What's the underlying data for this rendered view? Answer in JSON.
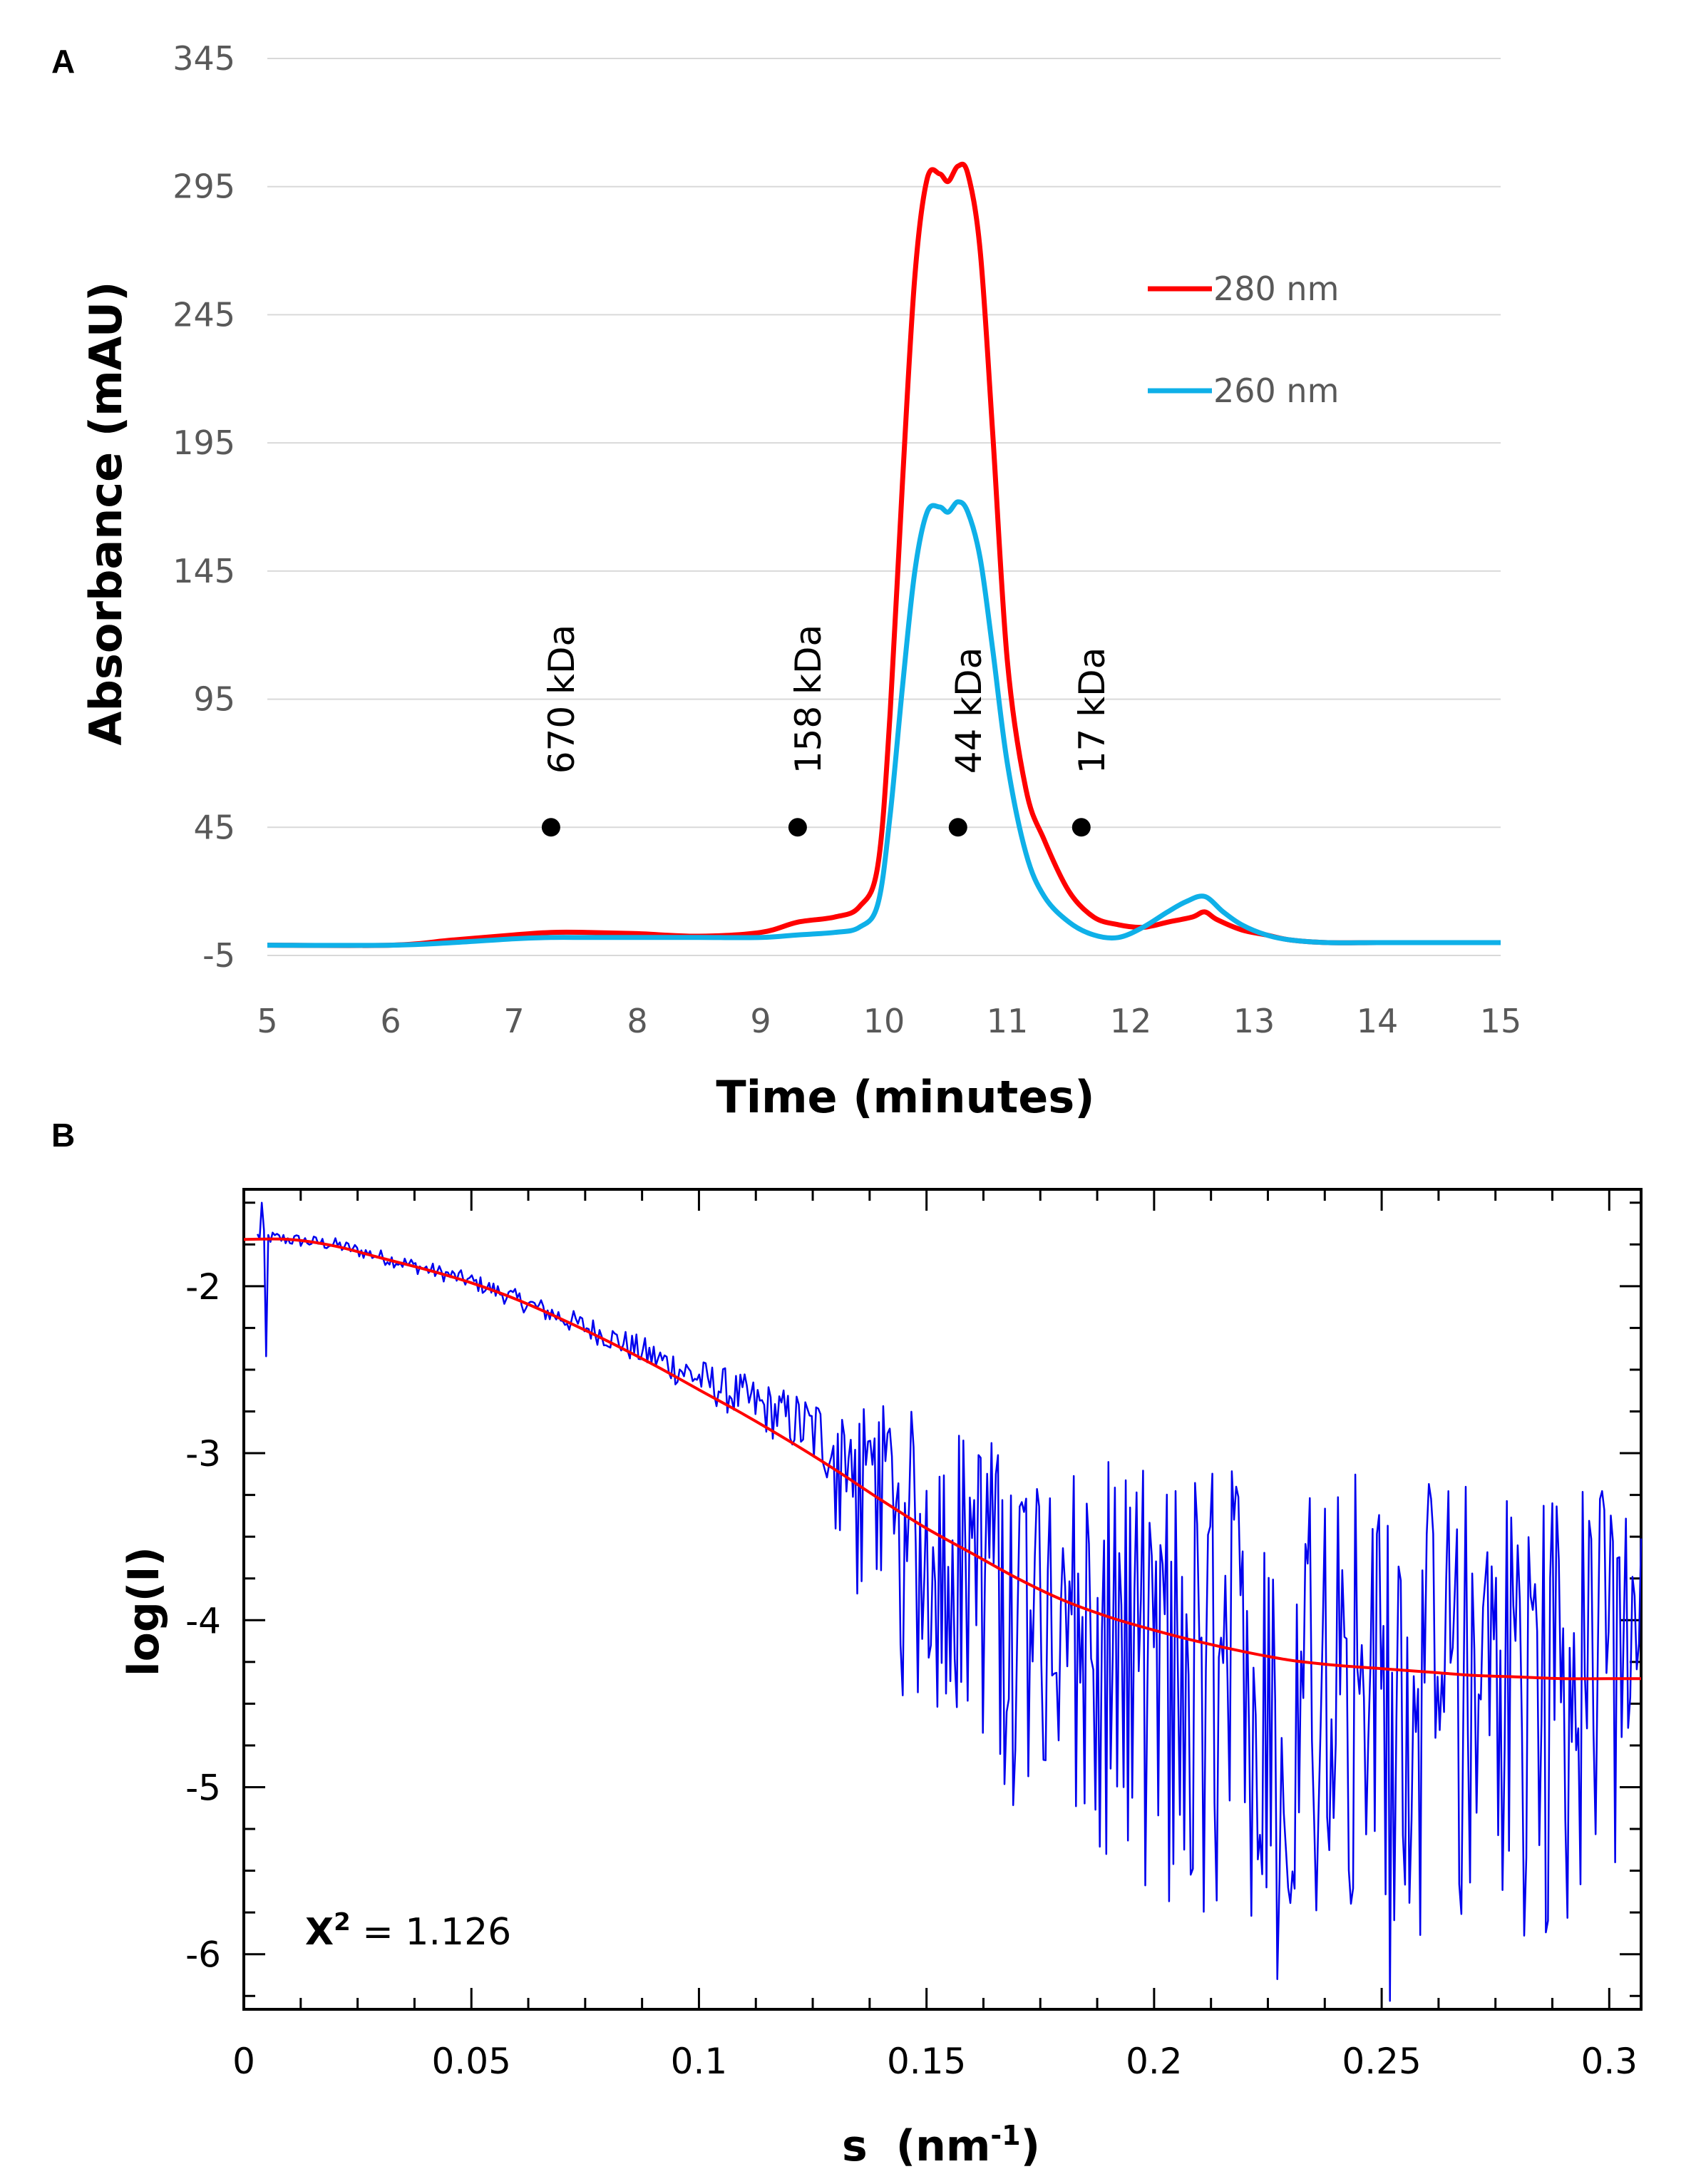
{
  "chart_data": [
    {
      "panel": "A",
      "type": "line",
      "xlabel": "Time (minutes)",
      "ylabel": "Absorbance (mAU)",
      "xlim": [
        5,
        15
      ],
      "ylim": [
        -5,
        345
      ],
      "x_ticks": [
        5,
        6,
        7,
        8,
        9,
        10,
        11,
        12,
        13,
        14,
        15
      ],
      "y_ticks": [
        -5,
        45,
        95,
        145,
        195,
        245,
        295,
        345
      ],
      "grid": "horizontal",
      "legend_position": "top-right",
      "series": [
        {
          "name": "280 nm",
          "color": "#ff0000",
          "x": [
            5,
            6,
            6.5,
            7,
            7.3,
            7.6,
            8,
            8.5,
            9,
            9.3,
            9.6,
            9.8,
            9.95,
            10.05,
            10.15,
            10.25,
            10.35,
            10.45,
            10.52,
            10.6,
            10.68,
            10.78,
            10.88,
            11.0,
            11.15,
            11.3,
            11.5,
            11.7,
            11.9,
            12.1,
            12.3,
            12.5,
            12.6,
            12.7,
            12.9,
            13.1,
            13.3,
            13.6,
            14,
            14.5,
            15
          ],
          "y": [
            -1,
            -1,
            1,
            3,
            4,
            4,
            3.5,
            2.5,
            4,
            8,
            10,
            14,
            30,
            90,
            180,
            260,
            298,
            300,
            297,
            303,
            300,
            270,
            200,
            110,
            60,
            40,
            20,
            10,
            7,
            6,
            8,
            10,
            12,
            9,
            5,
            3,
            1,
            0,
            0,
            0,
            0
          ]
        },
        {
          "name": "260 nm",
          "color": "#0fb0e8",
          "x": [
            5,
            6,
            6.5,
            7,
            7.3,
            7.6,
            8,
            8.5,
            9,
            9.3,
            9.6,
            9.8,
            9.95,
            10.05,
            10.15,
            10.25,
            10.35,
            10.45,
            10.52,
            10.6,
            10.68,
            10.78,
            10.88,
            11.0,
            11.15,
            11.3,
            11.5,
            11.7,
            11.9,
            12.1,
            12.3,
            12.45,
            12.6,
            12.75,
            12.9,
            13.1,
            13.3,
            13.6,
            14,
            14.5,
            15
          ],
          "y": [
            -1,
            -1,
            0,
            1.5,
            2,
            2,
            2,
            2,
            2,
            3,
            4,
            6,
            15,
            50,
            100,
            145,
            168,
            170,
            168,
            172,
            168,
            150,
            115,
            70,
            35,
            18,
            8,
            3,
            2,
            6,
            12,
            16,
            18,
            12,
            7,
            3,
            1,
            0,
            0,
            0,
            0
          ]
        }
      ],
      "markers": [
        {
          "x": 7.3,
          "y": 45,
          "label": "670 kDa"
        },
        {
          "x": 9.3,
          "y": 45,
          "label": "158 kDa"
        },
        {
          "x": 10.6,
          "y": 45,
          "label": "44 kDa"
        },
        {
          "x": 11.6,
          "y": 45,
          "label": "17 kDa"
        }
      ]
    },
    {
      "panel": "B",
      "type": "line",
      "xlabel": "s",
      "xlabel_unit": "(nm",
      "xlabel_unit_sup": "-1",
      "xlabel_unit_close": ")",
      "ylabel": "log(I)",
      "xlim": [
        0,
        0.307
      ],
      "ylim": [
        -6.33,
        -1.42
      ],
      "x_ticks": [
        "0",
        "0.05",
        "0.1",
        "0.15",
        "0.2",
        "0.25",
        "0.3"
      ],
      "y_ticks": [
        "-2",
        "-3",
        "-4",
        "-5",
        "-6"
      ],
      "grid": false,
      "annotation": {
        "label": "X",
        "sup": "2",
        "text": " = 1.126"
      },
      "series": [
        {
          "role": "data",
          "color": "#0000ee",
          "envelope": {
            "s": [
              0.003,
              0.02,
              0.05,
              0.08,
              0.1,
              0.12,
              0.14,
              0.15,
              0.17,
              0.2,
              0.22,
              0.25,
              0.3,
              0.307
            ],
            "center": [
              -1.7,
              -1.75,
              -1.97,
              -2.3,
              -2.55,
              -2.8,
              -3.1,
              -3.3,
              -3.6,
              -3.85,
              -3.9,
              -3.95,
              -3.98,
              -3.98
            ],
            "spread": [
              0.04,
              0.04,
              0.05,
              0.08,
              0.12,
              0.18,
              0.4,
              0.55,
              0.65,
              0.75,
              0.85,
              0.85,
              0.8,
              0.8
            ]
          },
          "outliers": [
            {
              "s": 0.005,
              "y": -2.42
            },
            {
              "s": 0.004,
              "y": -1.5
            },
            {
              "s": 0.145,
              "y": -4.45
            },
            {
              "s": 0.227,
              "y": -6.15
            },
            {
              "s": 0.252,
              "y": -6.28
            },
            {
              "s": 0.267,
              "y": -5.58
            }
          ]
        },
        {
          "role": "fit",
          "color": "#ff0000",
          "s": [
            0,
            0.01,
            0.02,
            0.03,
            0.04,
            0.05,
            0.06,
            0.07,
            0.08,
            0.09,
            0.1,
            0.11,
            0.12,
            0.13,
            0.14,
            0.15,
            0.16,
            0.17,
            0.18,
            0.19,
            0.2,
            0.21,
            0.22,
            0.23,
            0.24,
            0.25,
            0.26,
            0.27,
            0.28,
            0.29,
            0.3,
            0.307
          ],
          "y": [
            -1.72,
            -1.72,
            -1.76,
            -1.83,
            -1.9,
            -1.98,
            -2.08,
            -2.2,
            -2.33,
            -2.47,
            -2.62,
            -2.77,
            -2.93,
            -3.1,
            -3.28,
            -3.45,
            -3.6,
            -3.75,
            -3.88,
            -3.98,
            -4.06,
            -4.13,
            -4.19,
            -4.24,
            -4.27,
            -4.29,
            -4.31,
            -4.33,
            -4.34,
            -4.35,
            -4.35,
            -4.35
          ]
        }
      ]
    }
  ],
  "panel_labels": {
    "a": "A",
    "b": "B"
  }
}
